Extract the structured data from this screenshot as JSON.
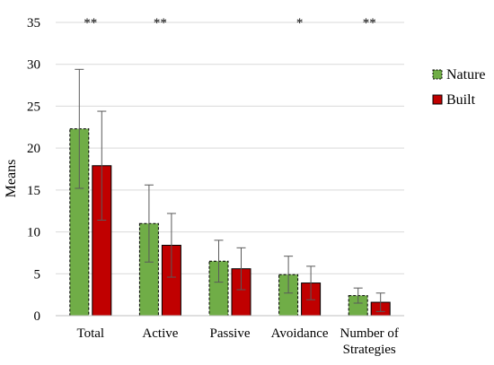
{
  "chart_data": {
    "type": "bar",
    "title": "",
    "xlabel": "",
    "ylabel": "Means",
    "ylim": [
      0,
      35
    ],
    "yticks": [
      0,
      5,
      10,
      15,
      20,
      25,
      30,
      35
    ],
    "grid": true,
    "legend_position": "right",
    "categories": [
      "Total",
      "Active",
      "Passive",
      "Avoidance",
      "Number of Strategies"
    ],
    "category_lines": [
      [
        "Total"
      ],
      [
        "Active"
      ],
      [
        "Passive"
      ],
      [
        "Avoidance"
      ],
      [
        "Number of",
        "Strategies"
      ]
    ],
    "significance": [
      "**",
      "**",
      "",
      "*",
      "**"
    ],
    "series": [
      {
        "name": "Nature",
        "color": "#70ad47",
        "dashed_border": true,
        "values": [
          22.3,
          11.0,
          6.5,
          4.9,
          2.4
        ],
        "error": [
          7.1,
          4.6,
          2.5,
          2.2,
          0.9
        ]
      },
      {
        "name": "Built",
        "color": "#c00000",
        "dashed_border": false,
        "values": [
          17.9,
          8.4,
          5.6,
          3.9,
          1.6
        ],
        "error": [
          6.5,
          3.8,
          2.5,
          2.0,
          1.1
        ]
      }
    ]
  }
}
